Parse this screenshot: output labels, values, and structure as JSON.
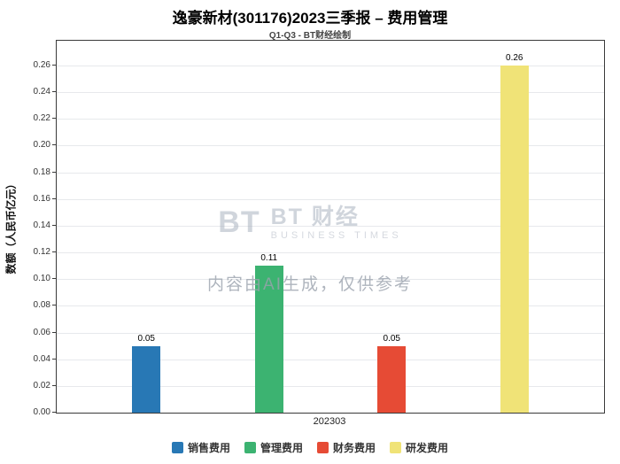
{
  "title": "逸豪新材(301176)2023三季报 – 费用管理",
  "subtitle": "Q1-Q3 - BT财经绘制",
  "watermark": {
    "logo_mark": "BT",
    "logo_text": "BT 财经",
    "logo_sub": "BUSINESS TIMES",
    "disclaimer": "内容由AI生成，仅供参考"
  },
  "chart_data": {
    "type": "bar",
    "title": "逸豪新材(301176)2023三季报 – 费用管理",
    "subtitle": "Q1-Q3 - BT财经绘制",
    "categories": [
      "202303"
    ],
    "series": [
      {
        "name": "销售费用",
        "color": "#2878b5",
        "values": [
          0.05
        ]
      },
      {
        "name": "管理费用",
        "color": "#3cb371",
        "values": [
          0.11
        ]
      },
      {
        "name": "财务费用",
        "color": "#e64b35",
        "values": [
          0.05
        ]
      },
      {
        "name": "研发费用",
        "color": "#f0e377",
        "values": [
          0.26
        ]
      }
    ],
    "xlabel": "202303",
    "ylabel": "数额（人民币亿元）",
    "ylim": [
      0,
      0.26
    ],
    "ytick_step": 0.02,
    "grid": true,
    "legend_position": "bottom"
  }
}
